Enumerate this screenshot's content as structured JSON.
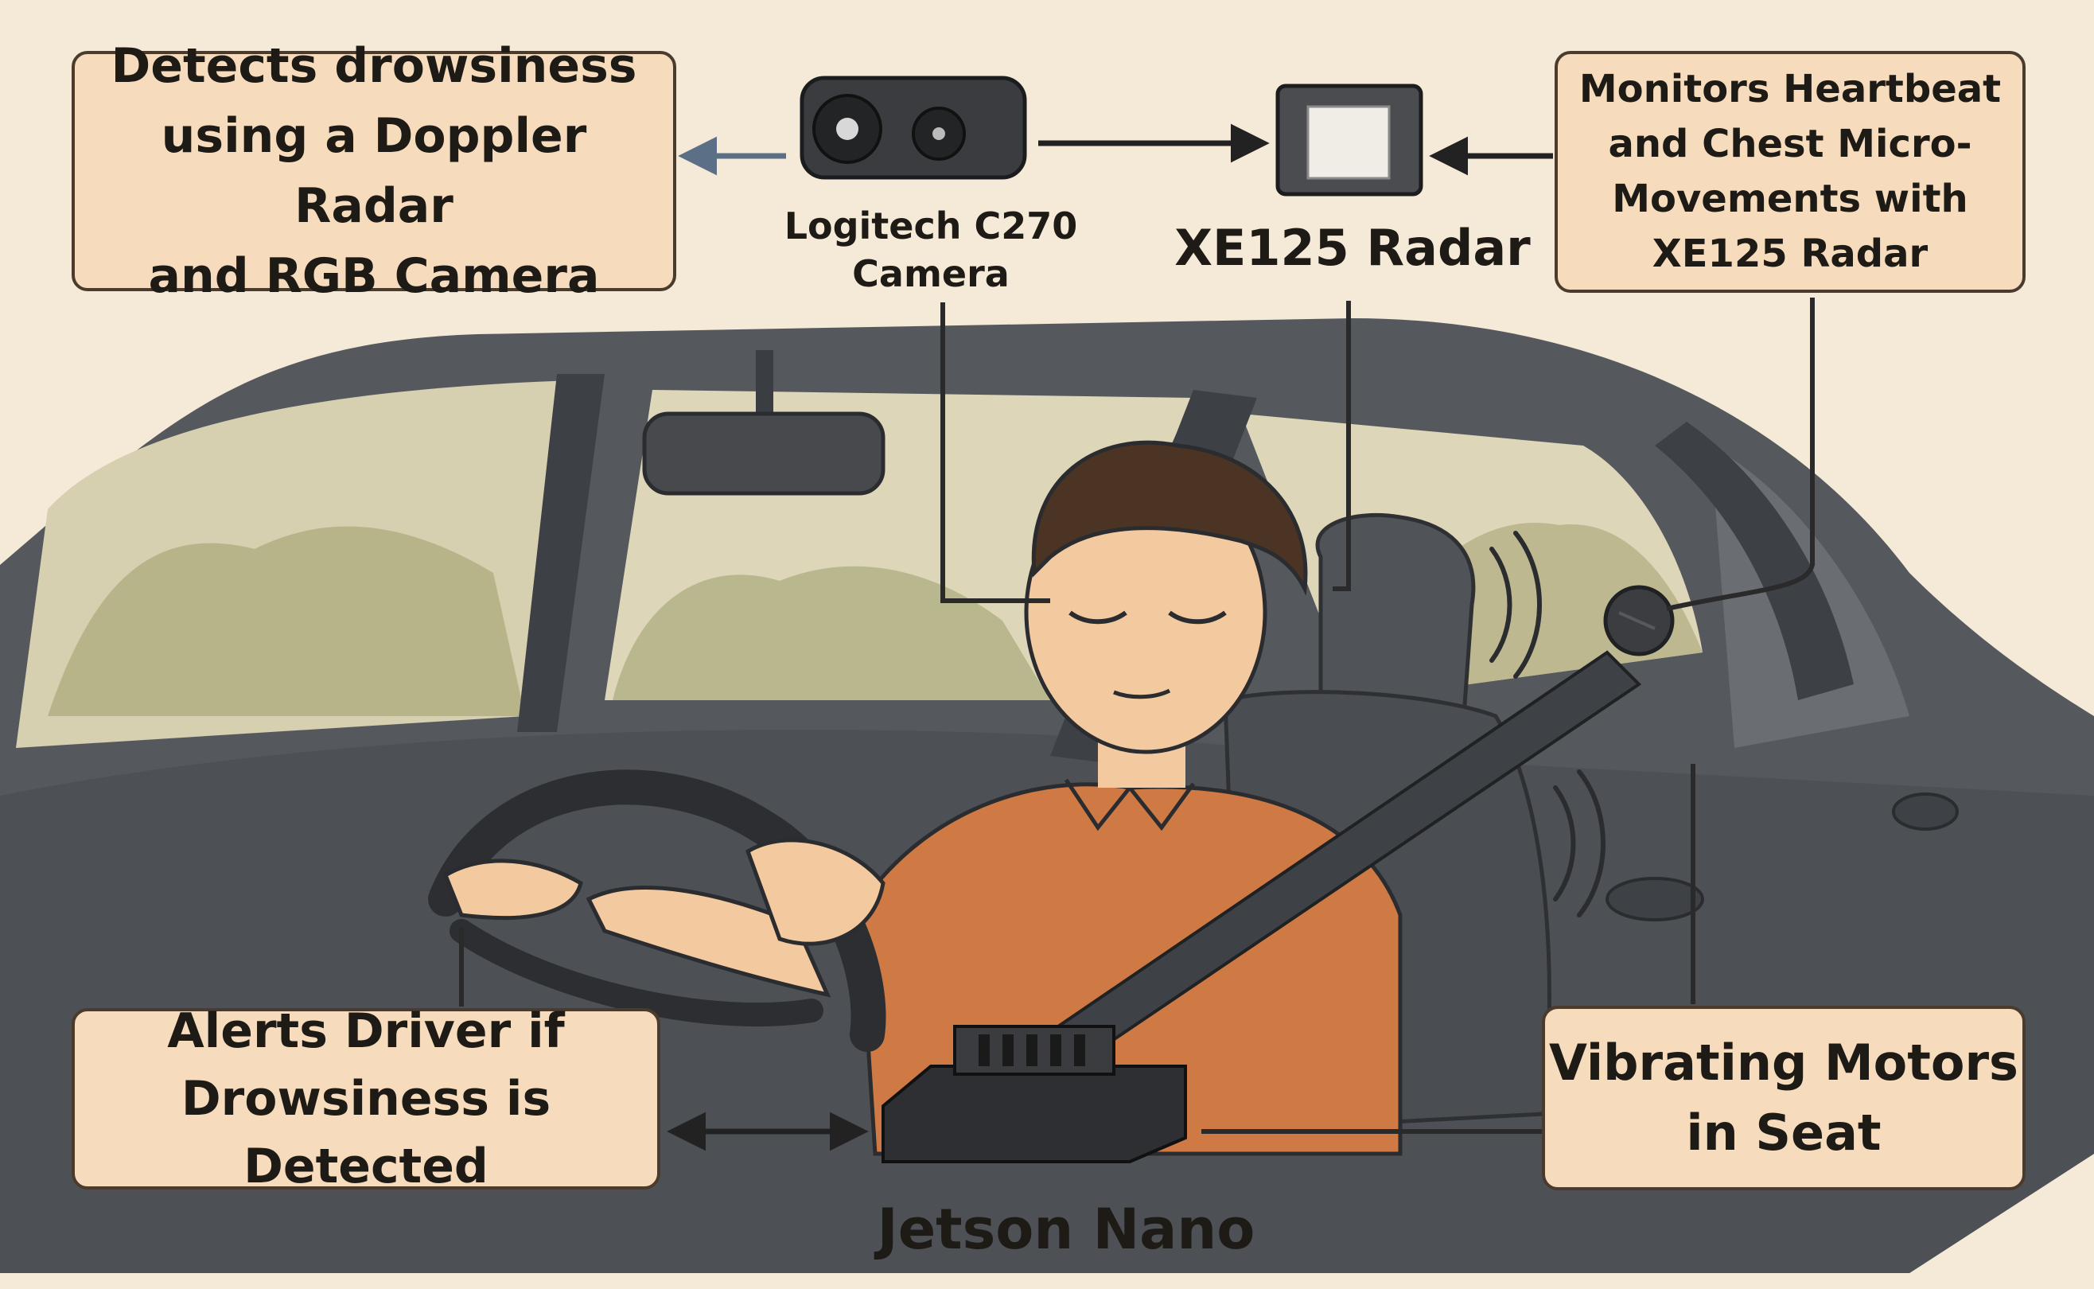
{
  "callouts": {
    "detects": "Detects drowsiness\nusing a Doppler Radar\nand RGB Camera",
    "monitors": "Monitors Heartbeat\nand Chest Micro-\nMovements with\nXE125 Radar",
    "alerts": "Alerts Driver if\nDrowsiness is Detected",
    "vibrating": "Vibrating Motors\nin Seat"
  },
  "devices": {
    "camera": "Logitech C270\nCamera",
    "radar": "XE125 Radar",
    "jetson": "Jetson Nano"
  },
  "colors": {
    "background": "#f5ead8",
    "box_fill": "#f6dcbc",
    "box_border": "#4a3b2c",
    "car_body": "#5d6064",
    "shirt": "#cf7a45",
    "skin": "#f3c9a0",
    "hair": "#4b3423"
  },
  "icons": [
    "camera-icon",
    "radar-sensor-icon",
    "jetson-nano-icon",
    "seat-motor-icon",
    "vibration-icon"
  ]
}
